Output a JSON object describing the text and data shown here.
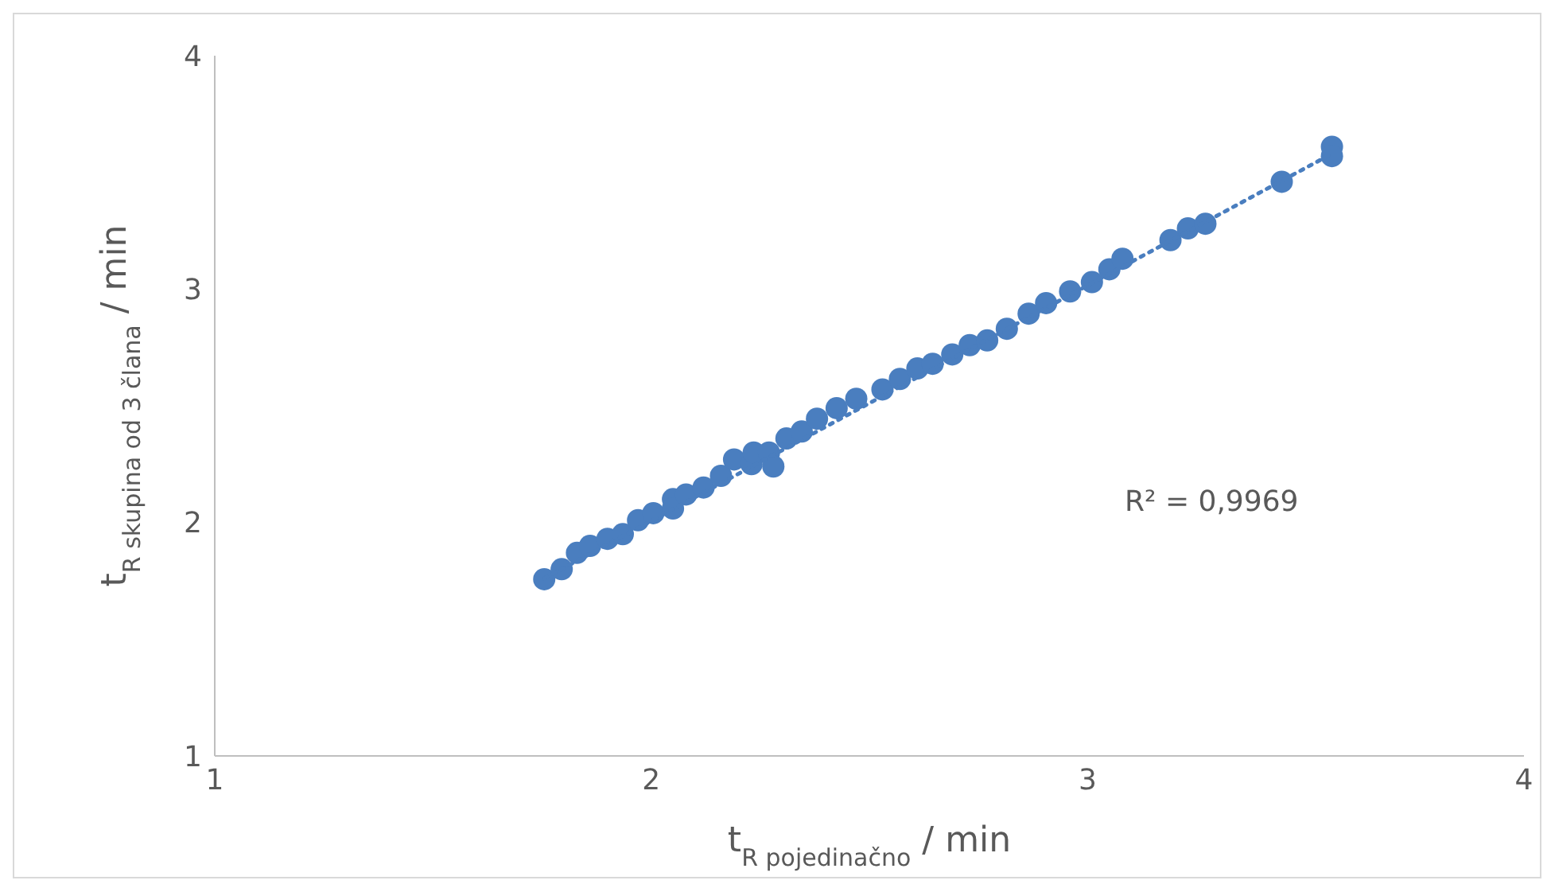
{
  "chart_data": {
    "type": "scatter",
    "xlabel": "t$_{R pojedinačno}$ / min",
    "ylabel": "t$_{R skupina od 3 člana}$ / min",
    "x": [
      1.755,
      1.795,
      1.83,
      1.86,
      1.9,
      1.935,
      1.97,
      2.005,
      2.05,
      2.05,
      2.08,
      2.12,
      2.16,
      2.19,
      2.23,
      2.235,
      2.27,
      2.28,
      2.31,
      2.345,
      2.38,
      2.425,
      2.47,
      2.53,
      2.57,
      2.61,
      2.645,
      2.69,
      2.73,
      2.77,
      2.815,
      2.865,
      2.905,
      2.96,
      3.01,
      3.05,
      3.08,
      3.19,
      3.23,
      3.27,
      3.445,
      3.56,
      3.56
    ],
    "series": [
      {
        "color": "#4a7ebf",
        "marker": "circle",
        "values": [
          1.757,
          1.8,
          1.87,
          1.9,
          1.93,
          1.95,
          2.01,
          2.04,
          2.1,
          2.06,
          2.12,
          2.15,
          2.2,
          2.27,
          2.25,
          2.3,
          2.3,
          2.24,
          2.36,
          2.39,
          2.445,
          2.49,
          2.53,
          2.57,
          2.615,
          2.66,
          2.68,
          2.72,
          2.76,
          2.78,
          2.83,
          2.895,
          2.94,
          2.99,
          3.03,
          3.085,
          3.13,
          3.21,
          3.26,
          3.28,
          3.46,
          3.61,
          3.57
        ]
      },
      {
        "type": "line",
        "color": "#4a7ebf",
        "marker": "none",
        "line_style": "dotted",
        "x": [
          1.755,
          3.56
        ],
        "values": [
          1.76,
          3.58
        ]
      }
    ],
    "annotations": [
      "R² = 0,9969"
    ],
    "xlim": [
      1,
      4
    ],
    "xticks": [
      1,
      2,
      3,
      4
    ],
    "ylim": [
      1,
      4
    ],
    "yticks": [
      1,
      2,
      3,
      4
    ]
  }
}
